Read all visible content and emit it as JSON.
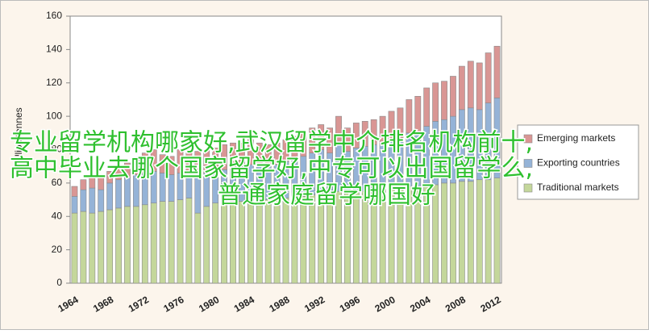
{
  "chart_data": {
    "type": "stacked_bar",
    "y_label": "Million tonnes",
    "categories": [
      "1964",
      null,
      null,
      null,
      "1968",
      null,
      null,
      null,
      "1972",
      null,
      null,
      null,
      "1976",
      null,
      null,
      null,
      "1980",
      null,
      null,
      null,
      "1984",
      null,
      null,
      null,
      "1988",
      null,
      null,
      null,
      "1992",
      null,
      null,
      null,
      "1996",
      null,
      null,
      null,
      "2000",
      null,
      null,
      null,
      "2004",
      null,
      null,
      null,
      "2008",
      null,
      null,
      null,
      "2012"
    ],
    "series": [
      {
        "name": "Traditional markets",
        "color": "#c4d79b",
        "values": [
          42,
          43,
          42,
          43,
          44,
          45,
          46,
          46,
          47,
          48,
          49,
          49,
          50,
          51,
          42,
          46,
          48,
          48,
          49,
          49,
          50,
          50,
          50,
          51,
          51,
          52,
          52,
          53,
          54,
          53,
          55,
          54,
          55,
          55,
          56,
          56,
          57,
          57,
          58,
          58,
          59,
          59,
          60,
          60,
          61,
          61,
          62,
          62,
          63
        ]
      },
      {
        "name": "Exporting countries",
        "color": "#95b3d7",
        "values": [
          10,
          13,
          15,
          13,
          16,
          17,
          17,
          19,
          19,
          19,
          17,
          16,
          16,
          12,
          22,
          20,
          19,
          20,
          20,
          21,
          21,
          20,
          20,
          20,
          22,
          22,
          24,
          25,
          26,
          25,
          28,
          25,
          26,
          27,
          27,
          28,
          29,
          30,
          32,
          33,
          35,
          38,
          38,
          40,
          43,
          44,
          42,
          46,
          48
        ]
      },
      {
        "name": "Emerging markets",
        "color": "#d99694",
        "values": [
          6,
          6,
          7,
          7,
          7,
          8,
          9,
          10,
          12,
          13,
          11,
          11,
          14,
          15,
          15,
          14,
          14,
          15,
          15,
          14,
          15,
          14,
          13,
          13,
          13,
          14,
          15,
          15,
          15,
          15,
          17,
          14,
          15,
          15,
          15,
          16,
          17,
          18,
          20,
          21,
          23,
          23,
          23,
          24,
          26,
          28,
          28,
          30,
          31
        ]
      }
    ],
    "ylim": [
      0,
      160
    ],
    "yticks": [
      0,
      20,
      40,
      60,
      80,
      100,
      120,
      140,
      160
    ],
    "grid": false,
    "legend": "right"
  },
  "watermark": [
    "专业留学机构哪家好,武汉留学中介排名机构前十,",
    "高中毕业去哪个国家留学好,中专可以出国留学么,",
    "普通家庭留学哪国好"
  ]
}
